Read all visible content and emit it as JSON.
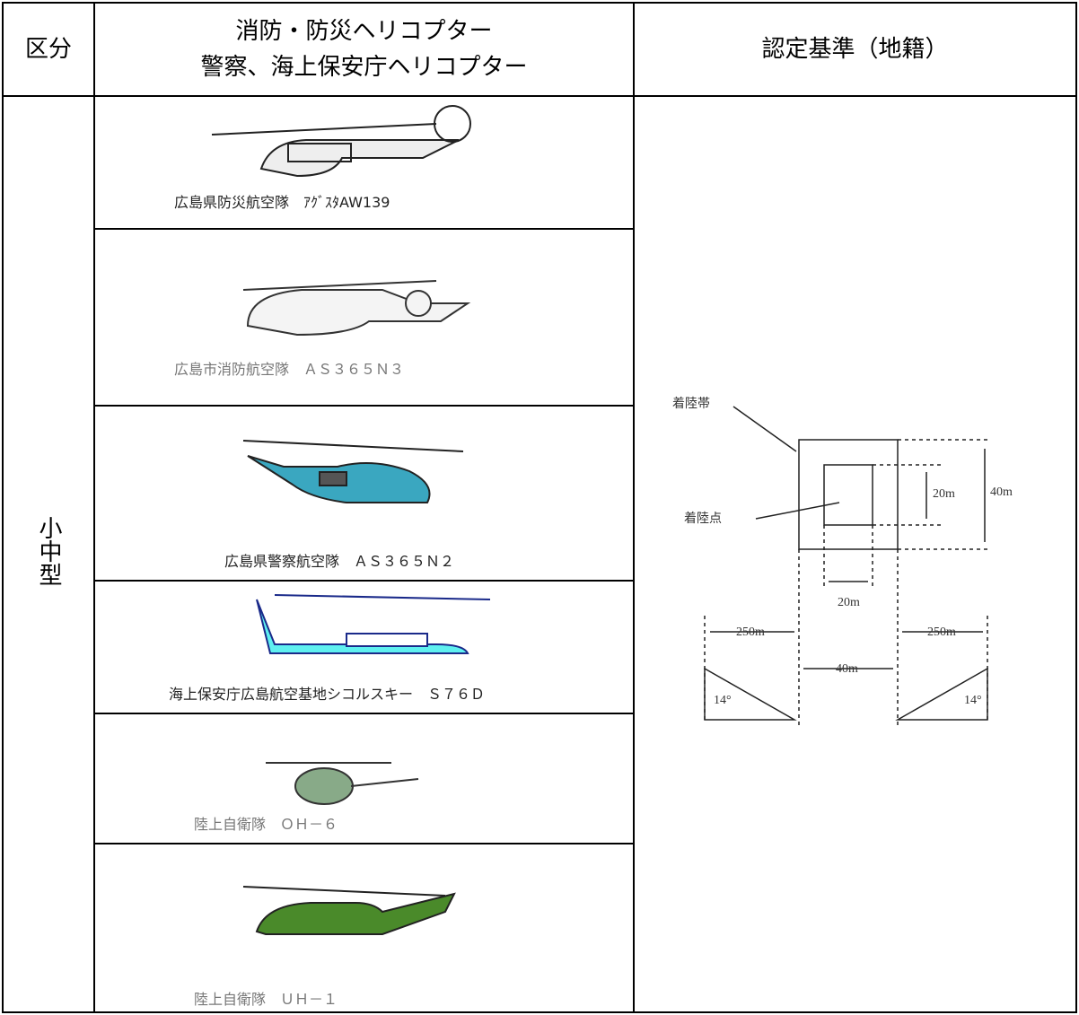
{
  "table": {
    "header": {
      "category": "区分",
      "helicopters": [
        "消防・防災ヘリコプター",
        "警察、海上保安庁ヘリコプター"
      ],
      "criteria": "認定基準（地籍）"
    },
    "size_class": "小中型",
    "rows": [
      {
        "caption": "広島県防災航空隊　ｱｸﾞｽﾀAW139"
      },
      {
        "caption": "広島市消防航空隊　ＡＳ３６５Ｎ３"
      },
      {
        "caption": "広島県警察航空隊　ＡＳ３６５Ｎ２"
      },
      {
        "caption": "海上保安庁広島航空基地シコルスキー　Ｓ７６Ｄ"
      },
      {
        "caption": "陸上自衛隊　ＯＨ－６"
      },
      {
        "caption": "陸上自衛隊　ＵＨ－１"
      }
    ],
    "diagram": {
      "landing_zone": "着陸帯",
      "landing_point": "着陸点",
      "inner_size": "20m",
      "outer_size": "40m",
      "inner_width": "20m",
      "approach_left": "250m",
      "center_width": "40m",
      "approach_right": "250m",
      "angle_left": "14°",
      "angle_right": "14°"
    }
  }
}
